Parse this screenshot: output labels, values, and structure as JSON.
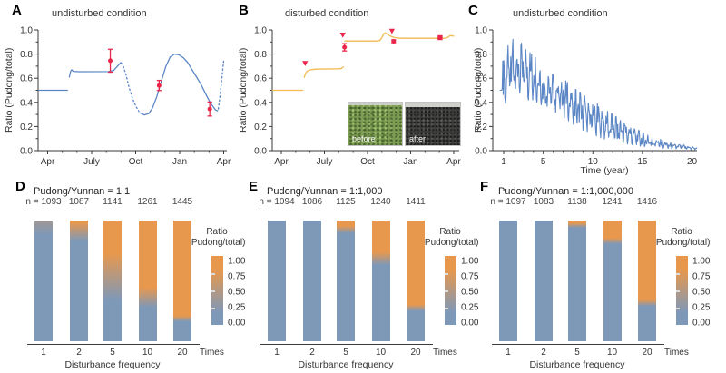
{
  "colors": {
    "blue_line": "#5b86c5",
    "orange_line": "#f1ba52",
    "red": "#e8274b",
    "bar_blue": "#7e98b8",
    "bar_orange": "#e8984d",
    "axis": "#3a3a3a"
  },
  "chart_data": [
    {
      "id": "A",
      "type": "line",
      "title": "undisturbed condition",
      "ylabel": "Ratio (Pudong/total)",
      "x_tick_labels": [
        "Apr",
        "July",
        "Oct",
        "Jan",
        "Apr"
      ],
      "x_tick_months": [
        0,
        3,
        6,
        9,
        12
      ],
      "y_tick_labels": [
        "0.0",
        "0.2",
        "0.4",
        "0.6",
        "0.8",
        "1.0"
      ],
      "ylim": [
        0,
        1
      ],
      "segments": [
        {
          "style": "solid",
          "pts": [
            [
              -0.62,
              0.5
            ],
            [
              1.35,
              0.5
            ]
          ]
        },
        {
          "style": "solid",
          "pts": [
            [
              1.48,
              0.61
            ],
            [
              1.56,
              0.655
            ],
            [
              1.64,
              0.67
            ],
            [
              1.75,
              0.657
            ],
            [
              2.1,
              0.654
            ],
            [
              4.15,
              0.655
            ],
            [
              4.5,
              0.665
            ],
            [
              4.8,
              0.705
            ],
            [
              4.98,
              0.73
            ],
            [
              5.08,
              0.718
            ]
          ]
        },
        {
          "style": "dotted",
          "pts": [
            [
              5.16,
              0.698
            ],
            [
              5.35,
              0.625
            ],
            [
              5.55,
              0.525
            ],
            [
              5.78,
              0.435
            ],
            [
              6.0,
              0.37
            ],
            [
              6.22,
              0.325
            ]
          ]
        },
        {
          "style": "solid",
          "pts": [
            [
              6.32,
              0.312
            ],
            [
              6.6,
              0.296
            ],
            [
              6.9,
              0.308
            ],
            [
              7.15,
              0.355
            ],
            [
              7.45,
              0.45
            ],
            [
              7.75,
              0.575
            ],
            [
              8.05,
              0.695
            ],
            [
              8.35,
              0.775
            ],
            [
              8.65,
              0.8
            ],
            [
              8.95,
              0.795
            ],
            [
              9.25,
              0.77
            ],
            [
              9.55,
              0.73
            ],
            [
              9.85,
              0.67
            ],
            [
              10.15,
              0.61
            ],
            [
              10.45,
              0.55
            ],
            [
              10.75,
              0.475
            ],
            [
              11.05,
              0.405
            ],
            [
              11.3,
              0.36
            ],
            [
              11.45,
              0.337
            ],
            [
              11.58,
              0.33
            ]
          ]
        },
        {
          "style": "dotted",
          "pts": [
            [
              11.63,
              0.345
            ],
            [
              11.73,
              0.43
            ],
            [
              11.83,
              0.55
            ],
            [
              11.93,
              0.665
            ],
            [
              12.0,
              0.745
            ]
          ]
        }
      ],
      "error_points": [
        {
          "x": 4.27,
          "y": 0.745,
          "err": 0.095
        },
        {
          "x": 7.6,
          "y": 0.54,
          "err": 0.042
        },
        {
          "x": 11.05,
          "y": 0.345,
          "err": 0.058
        }
      ]
    },
    {
      "id": "B",
      "type": "line",
      "title": "disturbed condition",
      "ylabel": "Ratio (Pudong/total)",
      "x_tick_labels": [
        "Apr",
        "July",
        "Oct",
        "Jan",
        "Apr"
      ],
      "x_tick_months": [
        0,
        3,
        6,
        9,
        12
      ],
      "y_tick_labels": [
        "0.0",
        "0.2",
        "0.4",
        "0.6",
        "0.8",
        "1.0"
      ],
      "ylim": [
        0,
        1
      ],
      "segments": [
        {
          "style": "solid",
          "pts": [
            [
              -0.62,
              0.5
            ],
            [
              1.5,
              0.5
            ]
          ]
        },
        {
          "style": "solid",
          "pts": [
            [
              1.6,
              0.607
            ],
            [
              1.68,
              0.638
            ],
            [
              1.8,
              0.658
            ],
            [
              2.0,
              0.669
            ],
            [
              2.4,
              0.675
            ],
            [
              4.0,
              0.678
            ],
            [
              4.2,
              0.682
            ],
            [
              4.32,
              0.693
            ]
          ]
        },
        {
          "style": "solid",
          "pts": [
            [
              4.42,
              0.908
            ],
            [
              6.6,
              0.908
            ],
            [
              6.85,
              0.912
            ],
            [
              7.0,
              0.935
            ],
            [
              7.12,
              0.968
            ],
            [
              7.22,
              0.975
            ],
            [
              7.38,
              0.965
            ],
            [
              7.6,
              0.948
            ],
            [
              7.9,
              0.936
            ],
            [
              8.3,
              0.931
            ],
            [
              11.45,
              0.931
            ],
            [
              11.6,
              0.94
            ],
            [
              11.75,
              0.953
            ],
            [
              11.88,
              0.951
            ],
            [
              12.0,
              0.948
            ]
          ]
        }
      ],
      "triangle_markers": [
        {
          "x": 1.66,
          "y": 0.7
        },
        {
          "x": 4.28,
          "y": 0.935
        },
        {
          "x": 7.7,
          "y": 0.967
        }
      ],
      "error_points": [
        {
          "x": 4.4,
          "y": 0.856,
          "err": 0.03
        },
        {
          "x": 7.82,
          "y": 0.906,
          "err": 0.012
        }
      ],
      "square_markers": [
        {
          "x": 11.05,
          "y": 0.936
        }
      ],
      "inset": {
        "before_label": "before",
        "after_label": "after"
      }
    },
    {
      "id": "C",
      "type": "line",
      "title": "undisturbed condition",
      "ylabel": "Ratio (Pudong/total)",
      "xlabel": "Time (year)",
      "x_tick_values": [
        1,
        5,
        10,
        15,
        20
      ],
      "x_tick_labels": [
        "1",
        "5",
        "10",
        "15",
        "20"
      ],
      "y_tick_labels": [
        "0.0",
        "0.2",
        "0.4",
        "0.6",
        "0.8",
        "1.0"
      ],
      "ylim": [
        0,
        1
      ],
      "xlim": [
        0.55,
        20.6
      ],
      "start_pts": [
        [
          0.62,
          0.5
        ],
        [
          0.8,
          0.5
        ]
      ],
      "envelope": {
        "t": [
          1,
          2,
          3,
          4,
          5,
          6,
          7,
          8,
          9,
          10,
          11,
          12,
          13,
          14,
          15,
          16,
          17,
          18,
          19,
          20,
          20.6
        ],
        "max": [
          0.82,
          0.93,
          0.88,
          0.82,
          0.66,
          0.63,
          0.6,
          0.52,
          0.47,
          0.42,
          0.35,
          0.3,
          0.25,
          0.2,
          0.15,
          0.11,
          0.09,
          0.06,
          0.05,
          0.035,
          0.03
        ],
        "min": [
          0.31,
          0.45,
          0.42,
          0.42,
          0.37,
          0.33,
          0.28,
          0.22,
          0.17,
          0.13,
          0.1,
          0.08,
          0.06,
          0.05,
          0.035,
          0.025,
          0.02,
          0.012,
          0.01,
          0.008,
          0.006
        ]
      }
    },
    {
      "id": "D",
      "type": "bar",
      "title": "Pudong/Yunnan = 1:1",
      "xlabel": "Disturbance frequency",
      "x_axis_suffix": "Times",
      "categories": [
        "1",
        "2",
        "5",
        "10",
        "20"
      ],
      "n_labels": [
        "n = 1093",
        "1087",
        "1141",
        "1261",
        "1445"
      ],
      "bars": [
        {
          "orange_to": -0.25,
          "blue_from": 0.12
        },
        {
          "orange_to": 0.015,
          "blue_from": 0.17
        },
        {
          "orange_to": 0.27,
          "blue_from": 0.66
        },
        {
          "orange_to": 0.555,
          "blue_from": 0.72
        },
        {
          "orange_to": 0.79,
          "blue_from": 0.835
        }
      ],
      "colorbar": {
        "label_line1": "Ratio",
        "label_line2": "(Pudong/total)",
        "ticks": [
          "1.00",
          "0.75",
          "0.50",
          "0.25",
          "0.00"
        ]
      }
    },
    {
      "id": "E",
      "type": "bar",
      "title": "Pudong/Yunnan = 1:1,000",
      "xlabel": "Disturbance frequency",
      "x_axis_suffix": "Times",
      "categories": [
        "1",
        "2",
        "5",
        "10",
        "20"
      ],
      "n_labels": [
        "n = 1094",
        "1086",
        "1125",
        "1240",
        "1411"
      ],
      "bars": [
        {
          "orange_to": -1.0,
          "blue_from": 0.02
        },
        {
          "orange_to": -1.0,
          "blue_from": 0.02
        },
        {
          "orange_to": 0.045,
          "blue_from": 0.105
        },
        {
          "orange_to": 0.26,
          "blue_from": 0.37
        },
        {
          "orange_to": 0.695,
          "blue_from": 0.75
        }
      ],
      "colorbar": {
        "label_line1": "Ratio",
        "label_line2": "(Pudong/total)",
        "ticks": [
          "1.00",
          "0.75",
          "0.50",
          "0.25",
          "0.00"
        ]
      }
    },
    {
      "id": "F",
      "type": "bar",
      "title": "Pudong/Yunnan = 1:1,000,000",
      "xlabel": "Disturbance frequency",
      "x_axis_suffix": "Times",
      "categories": [
        "1",
        "2",
        "5",
        "10",
        "20"
      ],
      "n_labels": [
        "n = 1097",
        "1083",
        "1138",
        "1241",
        "1416"
      ],
      "bars": [
        {
          "orange_to": -1.0,
          "blue_from": 0.02
        },
        {
          "orange_to": -1.0,
          "blue_from": 0.02
        },
        {
          "orange_to": 0.02,
          "blue_from": 0.06
        },
        {
          "orange_to": 0.145,
          "blue_from": 0.195
        },
        {
          "orange_to": 0.655,
          "blue_from": 0.71
        }
      ],
      "colorbar": {
        "label_line1": "Ratio",
        "label_line2": "(Pudong/total)",
        "ticks": [
          "1.00",
          "0.75",
          "0.50",
          "0.25",
          "0.00"
        ]
      }
    }
  ]
}
